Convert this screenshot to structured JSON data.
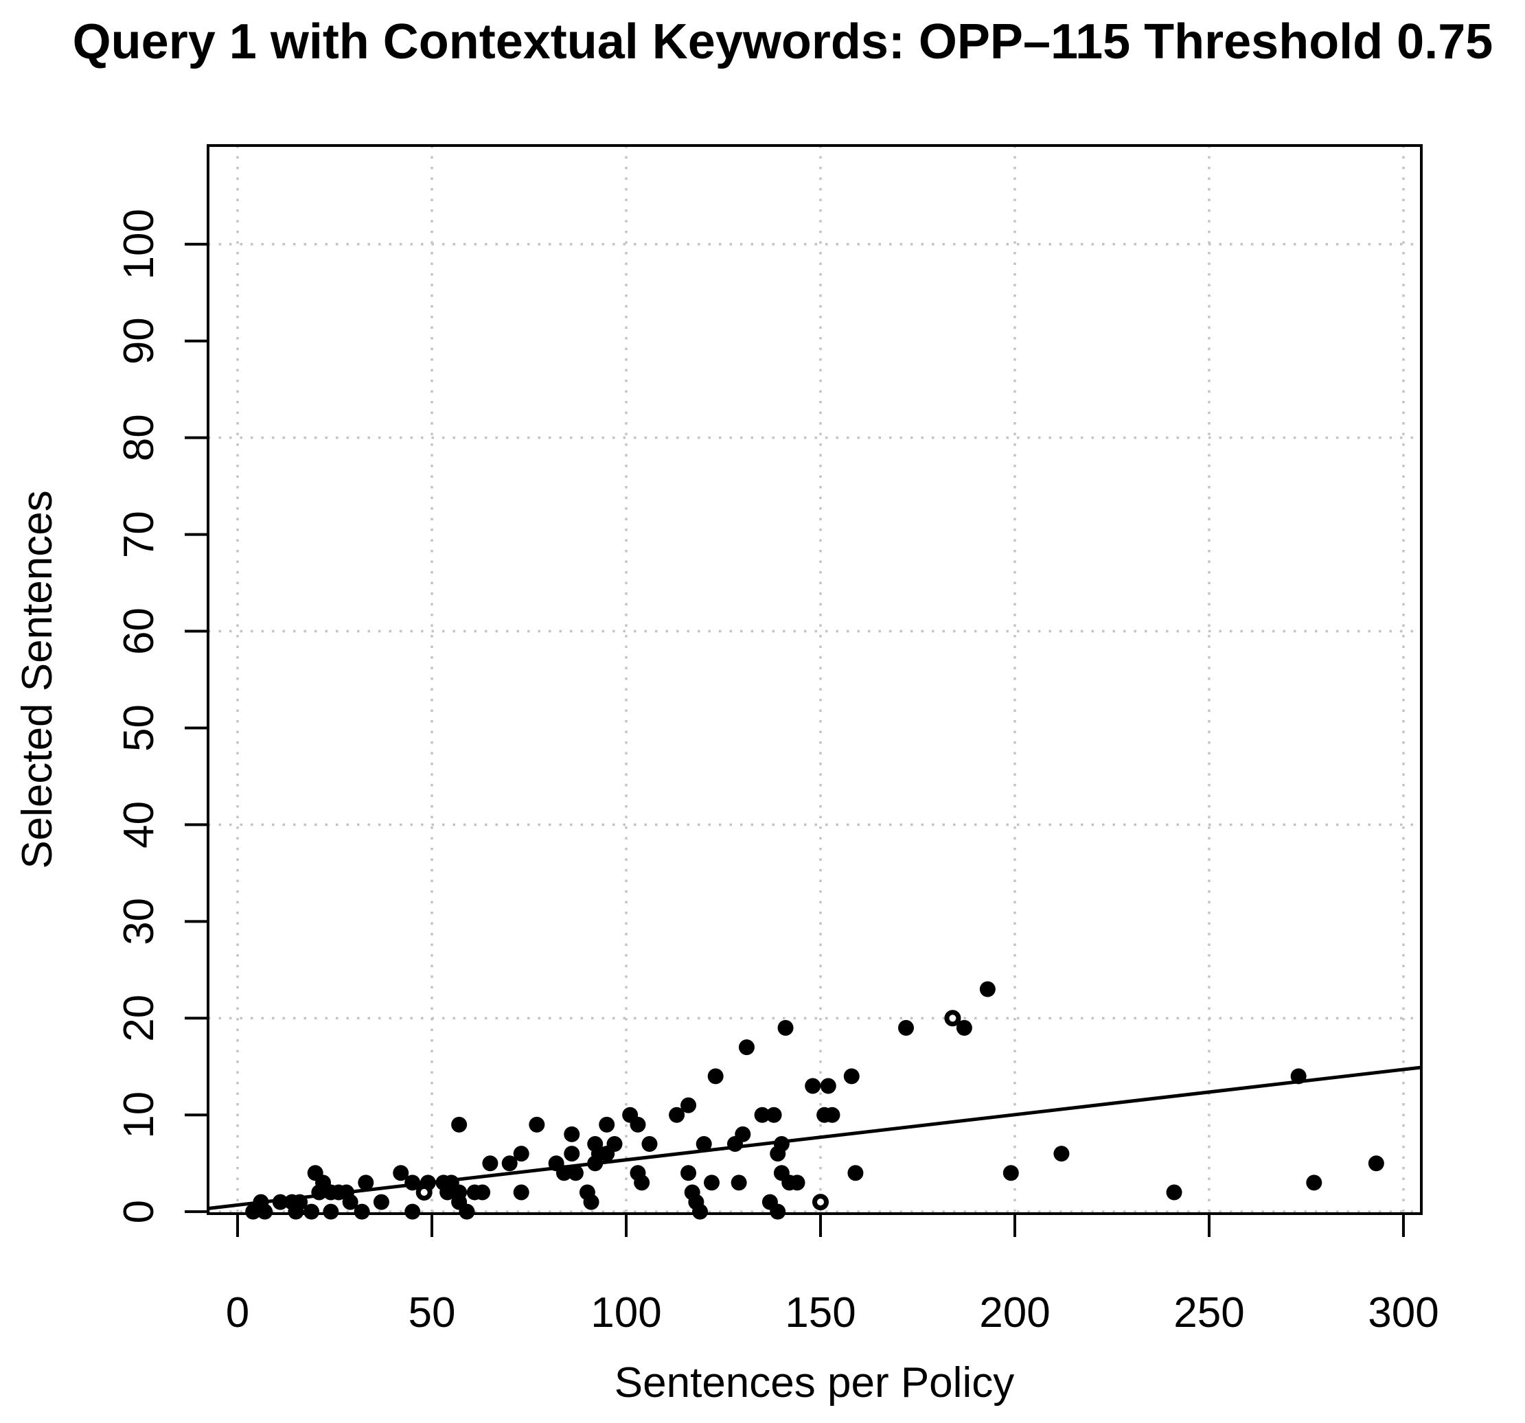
{
  "chart_data": {
    "type": "scatter",
    "title": "Query 1 with Contextual Keywords: OPP–115 Threshold 0.75",
    "xlabel": "Sentences per Policy",
    "ylabel": "Selected Sentences",
    "xlim": [
      -7.6,
      304.6
    ],
    "ylim": [
      -0.2,
      110.2
    ],
    "x_ticks": [
      0,
      50,
      100,
      150,
      200,
      250,
      300
    ],
    "y_ticks": [
      0,
      10,
      20,
      30,
      40,
      50,
      60,
      70,
      80,
      90,
      100
    ],
    "grid": {
      "x_values": [
        0,
        50,
        100,
        150,
        200,
        250,
        300
      ],
      "y_values": [
        0,
        20,
        40,
        60,
        80,
        100
      ],
      "style": "dotted",
      "color": "#c3c3c3"
    },
    "legend": "none",
    "point_color": "#000000",
    "axis_color": "#000000",
    "points": [
      [
        4,
        0
      ],
      [
        6,
        1
      ],
      [
        7,
        0
      ],
      [
        11,
        1
      ],
      [
        14,
        1
      ],
      [
        15,
        0
      ],
      [
        16,
        1
      ],
      [
        19,
        0
      ],
      [
        20,
        4
      ],
      [
        21,
        2
      ],
      [
        22,
        3
      ],
      [
        24,
        0
      ],
      [
        24,
        2
      ],
      [
        26,
        2
      ],
      [
        28,
        2
      ],
      [
        29,
        1
      ],
      [
        32,
        0
      ],
      [
        33,
        3
      ],
      [
        37,
        1
      ],
      [
        42,
        4
      ],
      [
        45,
        0
      ],
      [
        45,
        3
      ],
      [
        49,
        3
      ],
      [
        53,
        3
      ],
      [
        54,
        2
      ],
      [
        55,
        3
      ],
      [
        57,
        1
      ],
      [
        57,
        2
      ],
      [
        57,
        9
      ],
      [
        59,
        0
      ],
      [
        61,
        2
      ],
      [
        63,
        2
      ],
      [
        65,
        5
      ],
      [
        70,
        5
      ],
      [
        73,
        2
      ],
      [
        73,
        6
      ],
      [
        77,
        9
      ],
      [
        82,
        5
      ],
      [
        84,
        4
      ],
      [
        86,
        6
      ],
      [
        86,
        8
      ],
      [
        87,
        4
      ],
      [
        90,
        2
      ],
      [
        91,
        1
      ],
      [
        92,
        5
      ],
      [
        92,
        7
      ],
      [
        93,
        6
      ],
      [
        95,
        6
      ],
      [
        95,
        9
      ],
      [
        97,
        7
      ],
      [
        101,
        10
      ],
      [
        103,
        4
      ],
      [
        103,
        9
      ],
      [
        104,
        3
      ],
      [
        106,
        7
      ],
      [
        113,
        10
      ],
      [
        116,
        11
      ],
      [
        116,
        4
      ],
      [
        117,
        2
      ],
      [
        118,
        1
      ],
      [
        119,
        0
      ],
      [
        120,
        7
      ],
      [
        122,
        3
      ],
      [
        123,
        14
      ],
      [
        128,
        7
      ],
      [
        129,
        3
      ],
      [
        130,
        8
      ],
      [
        131,
        17
      ],
      [
        135,
        10
      ],
      [
        137,
        1
      ],
      [
        138,
        10
      ],
      [
        139,
        0
      ],
      [
        139,
        6
      ],
      [
        140,
        4
      ],
      [
        140,
        7
      ],
      [
        141,
        19
      ],
      [
        142,
        3
      ],
      [
        144,
        3
      ],
      [
        148,
        13
      ],
      [
        151,
        10
      ],
      [
        152,
        13
      ],
      [
        153,
        10
      ],
      [
        158,
        14
      ],
      [
        159,
        4
      ],
      [
        172,
        19
      ],
      [
        187,
        19
      ],
      [
        193,
        23
      ],
      [
        199,
        4
      ],
      [
        212,
        6
      ],
      [
        241,
        2
      ],
      [
        273,
        14
      ],
      [
        277,
        3
      ],
      [
        293,
        5
      ]
    ],
    "open_points": [
      [
        48,
        2
      ],
      [
        150,
        1
      ],
      [
        184,
        20
      ]
    ],
    "regression_line": {
      "slope": 0.0467,
      "intercept": 0.69
    }
  }
}
